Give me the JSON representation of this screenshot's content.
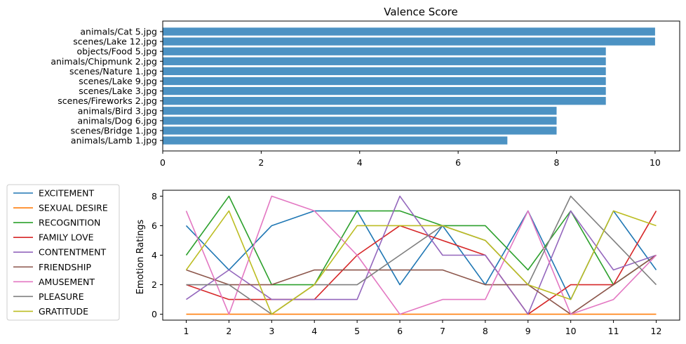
{
  "chart_data": [
    {
      "type": "bar",
      "orientation": "horizontal",
      "title": "Valence Score",
      "xlabel": "",
      "ylabel": "",
      "xlim": [
        0,
        10.5
      ],
      "xticks": [
        0,
        2,
        4,
        6,
        8,
        10
      ],
      "grid": false,
      "color": "#4c92c3",
      "categories": [
        "animals/Cat 5.jpg",
        "scenes/Lake 12.jpg",
        "objects/Food 5.jpg",
        "animals/Chipmunk 2.jpg",
        "scenes/Nature 1.jpg",
        "scenes/Lake 9.jpg",
        "scenes/Lake 3.jpg",
        "scenes/Fireworks 2.jpg",
        "animals/Bird 3.jpg",
        "animals/Dog 6.jpg",
        "scenes/Bridge 1.jpg",
        "animals/Lamb 1.jpg"
      ],
      "values": [
        10,
        10,
        9,
        9,
        9,
        9,
        9,
        9,
        8,
        8,
        8,
        7
      ]
    },
    {
      "type": "line",
      "title": "",
      "xlabel": "",
      "ylabel": "Emotion Ratings",
      "x": [
        1,
        2,
        3,
        4,
        5,
        6,
        7,
        8,
        9,
        10,
        11,
        12
      ],
      "ylim": [
        -0.4,
        8.4
      ],
      "yticks": [
        0,
        2,
        4,
        6,
        8
      ],
      "grid": false,
      "legend_position": "left, outside",
      "series": [
        {
          "name": "EXCITEMENT",
          "color": "#1f77b4",
          "values": [
            6,
            3,
            6,
            7,
            7,
            2,
            6,
            2,
            7,
            1,
            7,
            3
          ]
        },
        {
          "name": "SEXUAL DESIRE",
          "color": "#ff7f0e",
          "values": [
            0,
            0,
            0,
            0,
            0,
            0,
            0,
            0,
            0,
            0,
            0,
            0
          ]
        },
        {
          "name": "RECOGNITION",
          "color": "#2ca02c",
          "values": [
            4,
            8,
            2,
            2,
            7,
            7,
            6,
            6,
            3,
            7,
            2,
            4
          ]
        },
        {
          "name": "FAMILY LOVE",
          "color": "#d62728",
          "values": [
            2,
            1,
            1,
            1,
            4,
            6,
            5,
            4,
            0,
            2,
            2,
            7
          ]
        },
        {
          "name": "CONTENTMENT",
          "color": "#9467bd",
          "values": [
            1,
            3,
            1,
            1,
            1,
            8,
            4,
            4,
            0,
            7,
            3,
            4
          ]
        },
        {
          "name": "FRIENDSHIP",
          "color": "#8c564b",
          "values": [
            3,
            2,
            2,
            3,
            3,
            3,
            3,
            2,
            2,
            0,
            2,
            4
          ]
        },
        {
          "name": "AMUSEMENT",
          "color": "#e377c2",
          "values": [
            7,
            0,
            8,
            7,
            4,
            0,
            1,
            1,
            7,
            0,
            1,
            4
          ]
        },
        {
          "name": "PLEASURE",
          "color": "#7f7f7f",
          "values": [
            2,
            2,
            0,
            2,
            2,
            4,
            6,
            5,
            2,
            8,
            5,
            2
          ]
        },
        {
          "name": "GRATITUDE",
          "color": "#bcbd22",
          "values": [
            3,
            7,
            0,
            2,
            6,
            6,
            6,
            5,
            2,
            1,
            7,
            6
          ]
        }
      ]
    }
  ]
}
